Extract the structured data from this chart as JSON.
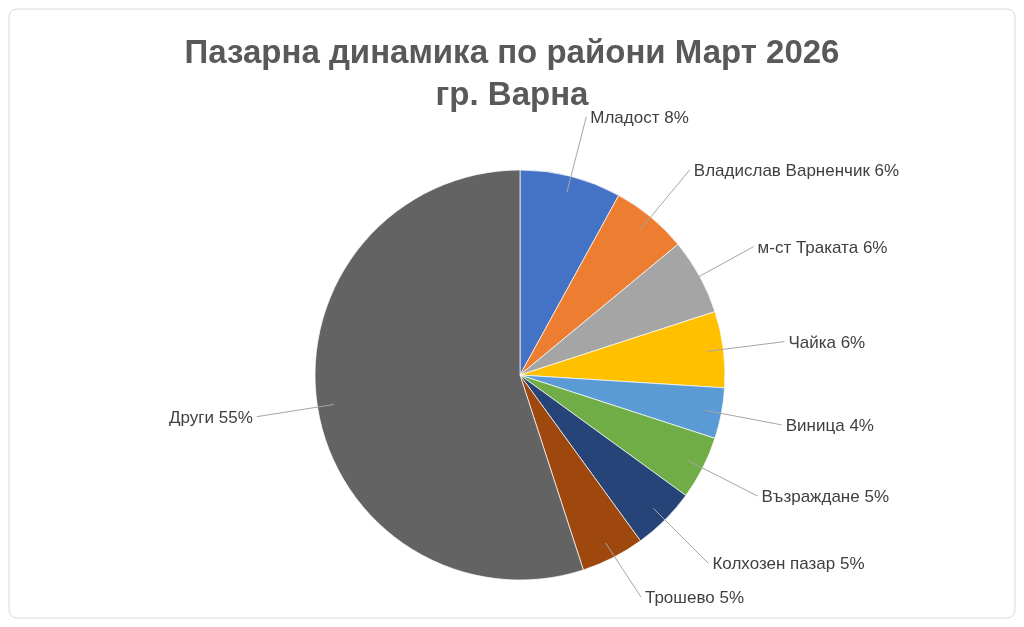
{
  "chart_data": {
    "type": "pie",
    "title": "Пазарна динамика по райони Март 2026\nгр. Варна",
    "categories": [
      "Младост",
      "Владислав Варненчик",
      "м-ст Траката",
      "Чайка",
      "Виница",
      "Възраждане",
      "Колхозен пазар",
      "Трошево",
      "Други"
    ],
    "values": [
      8,
      6,
      6,
      6,
      4,
      5,
      5,
      5,
      55
    ],
    "value_labels": [
      "8%",
      "6%",
      "6%",
      "6%",
      "4%",
      "5%",
      "5%",
      "5%",
      "55%"
    ],
    "colors": [
      "#4472c4",
      "#ed7d31",
      "#a5a5a5",
      "#ffc000",
      "#5b9bd5",
      "#70ad47",
      "#264478",
      "#9e480e",
      "#636363"
    ],
    "legend": false
  }
}
